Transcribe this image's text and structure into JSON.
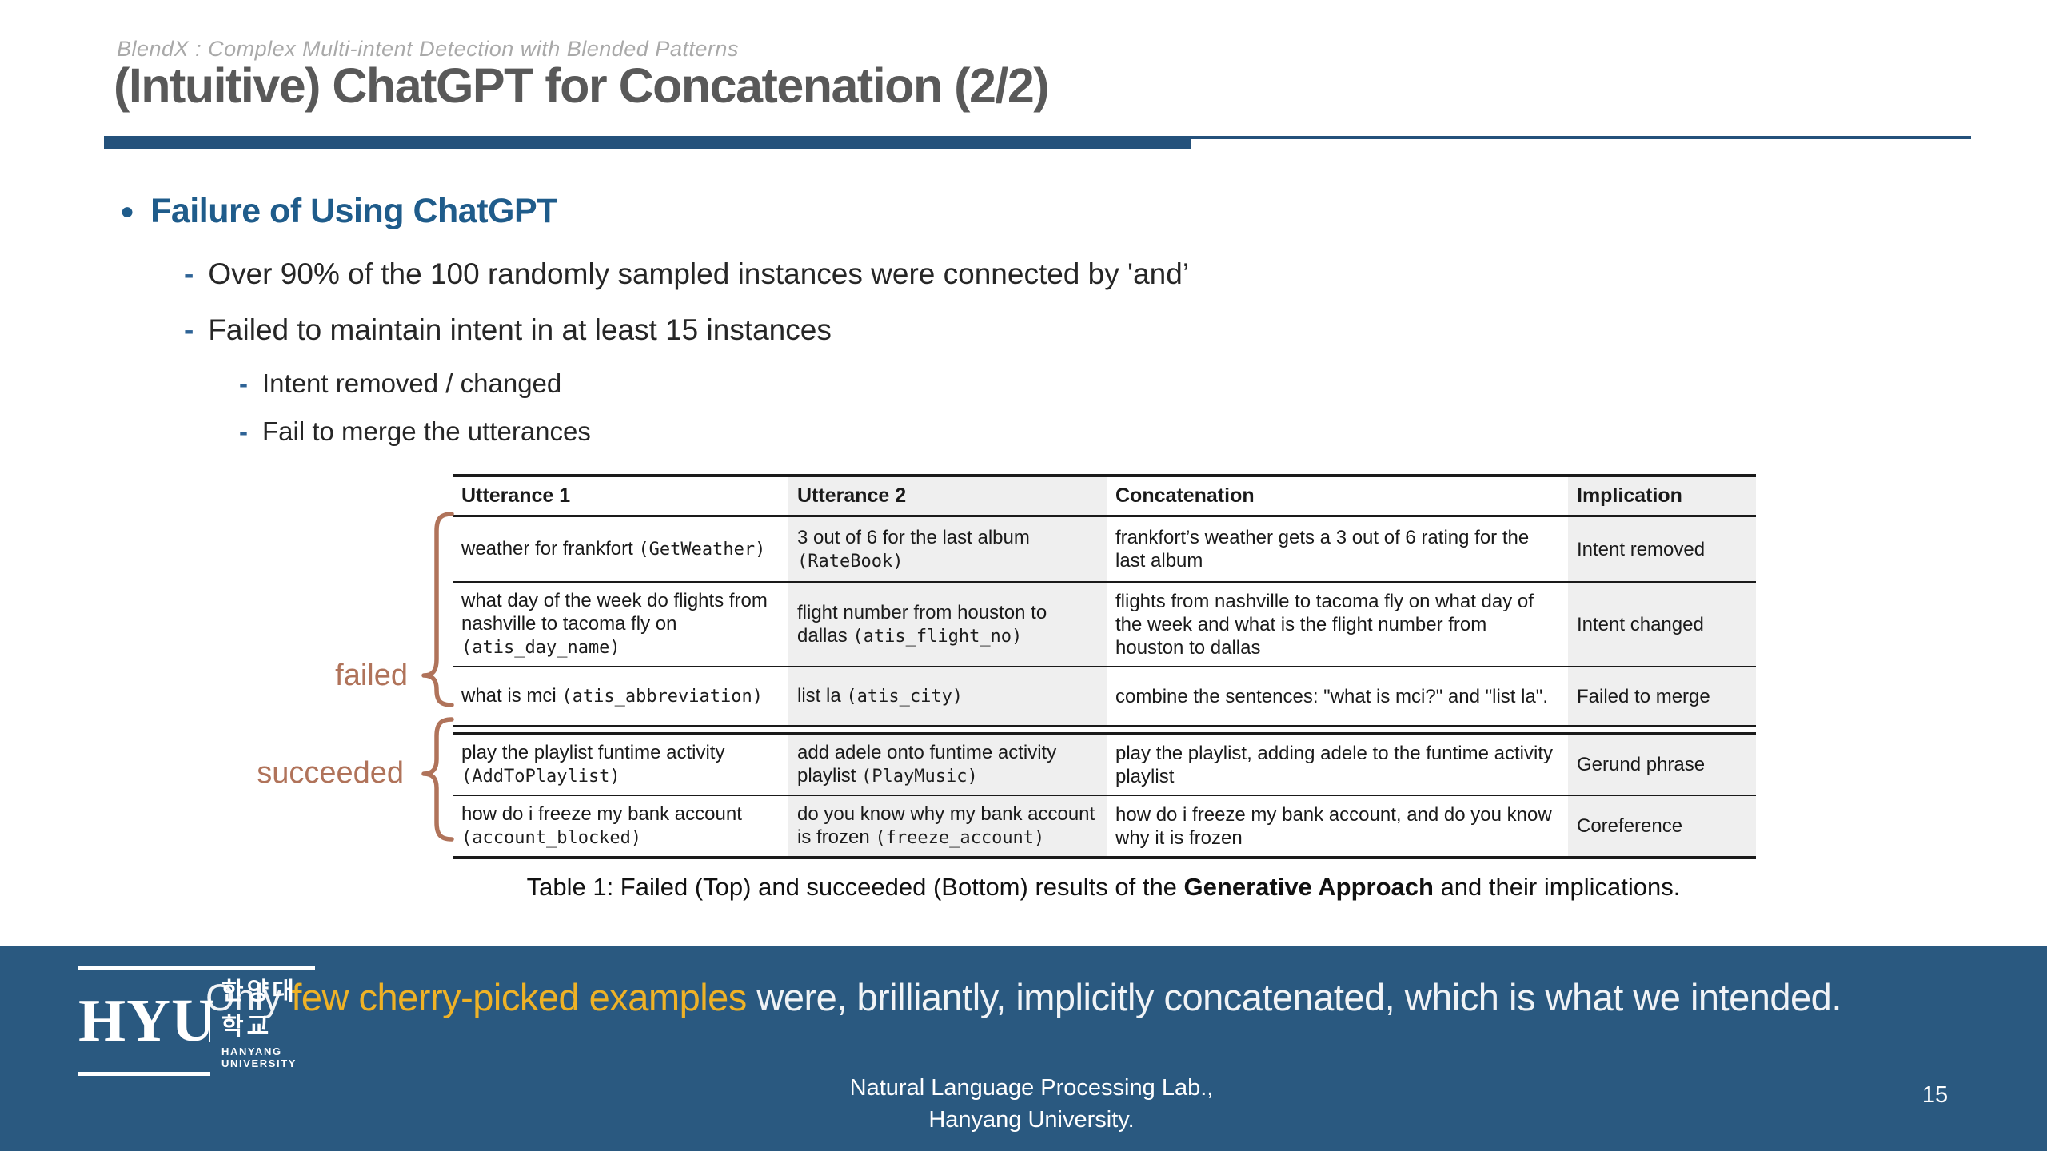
{
  "slide": {
    "kicker": "BlendX : Complex Multi-intent Detection with Blended Patterns",
    "title": "(Intuitive) ChatGPT for Concatenation (2/2)"
  },
  "content": {
    "heading": "Failure of Using ChatGPT",
    "bullets": [
      {
        "level": 1,
        "text": "Over 90% of the 100 randomly sampled instances were connected by 'and’"
      },
      {
        "level": 1,
        "text": "Failed to maintain intent in at least 15 instances"
      },
      {
        "level": 2,
        "text": "Intent removed / changed"
      },
      {
        "level": 2,
        "text": "Fail to merge the utterances"
      }
    ]
  },
  "table": {
    "headers": [
      "Utterance 1",
      "Utterance 2",
      "Concatenation",
      "Implication"
    ],
    "groups": [
      {
        "label": "failed",
        "rows": [
          {
            "utterance1": {
              "text": "weather for frankfort",
              "intent": "GetWeather"
            },
            "utterance2": {
              "text": "3 out of 6 for the last album",
              "intent": "RateBook"
            },
            "concatenation": "frankfort’s weather gets a 3 out of 6 rating for the last album",
            "implication": "Intent removed"
          },
          {
            "utterance1": {
              "text": "what day of the week do flights from nashville to tacoma fly on",
              "intent": "atis_day_name"
            },
            "utterance2": {
              "text": "flight number from houston to dallas",
              "intent": "atis_flight_no"
            },
            "concatenation": "flights from nashville to tacoma fly on what day of the week and what is the flight number from houston to dallas",
            "implication": "Intent changed"
          },
          {
            "utterance1": {
              "text": "what is mci",
              "intent": "atis_abbreviation"
            },
            "utterance2": {
              "text": "list la",
              "intent": "atis_city"
            },
            "concatenation": "combine the sentences: \"what is mci?\" and \"list la\".",
            "implication": "Failed to merge"
          }
        ]
      },
      {
        "label": "succeeded",
        "rows": [
          {
            "utterance1": {
              "text": "play the playlist funtime activity",
              "intent": "AddToPlaylist"
            },
            "utterance2": {
              "text": "add adele onto funtime activity playlist",
              "intent": "PlayMusic"
            },
            "concatenation": "play the playlist, adding adele to the funtime activity playlist",
            "implication": "Gerund phrase"
          },
          {
            "utterance1": {
              "text": "how do i freeze my bank account",
              "intent": "account_blocked"
            },
            "utterance2": {
              "text": "do you know why my bank account is frozen",
              "intent": "freeze_account"
            },
            "concatenation": "how do i freeze my bank account, and do you know why it is frozen",
            "implication": "Coreference"
          }
        ]
      }
    ],
    "caption": {
      "prefix": "Table 1: Failed (Top) and succeeded (Bottom) results of the ",
      "bold": "Generative Approach",
      "suffix": " and their implications."
    }
  },
  "banner": {
    "prefix": "Only ",
    "highlight": "few cherry-picked examples",
    "suffix": " were, brilliantly, implicitly concatenated, which is what we intended."
  },
  "footer": {
    "logo": {
      "acronym": "HYU",
      "korean": "한양대학교",
      "university": "HANYANG UNIVERSITY"
    },
    "lab_line1": "Natural Language Processing Lab.,",
    "lab_line2": "Hanyang University.",
    "page_number": "15"
  },
  "colors": {
    "accent_bar": "#24517b",
    "heading_blue": "#1f5c8b",
    "bullet_dash_blue": "#2e6396",
    "title_gray": "#595959",
    "kicker_gray": "#a9a9a9",
    "body_text": "#262626",
    "table_border": "#1a1a1a",
    "table_stripe": "#efefef",
    "brace_brown": "#b0735a",
    "banner_bg": "#2a5980",
    "banner_text": "#f0f3f6",
    "highlight_yellow": "#efb226"
  }
}
